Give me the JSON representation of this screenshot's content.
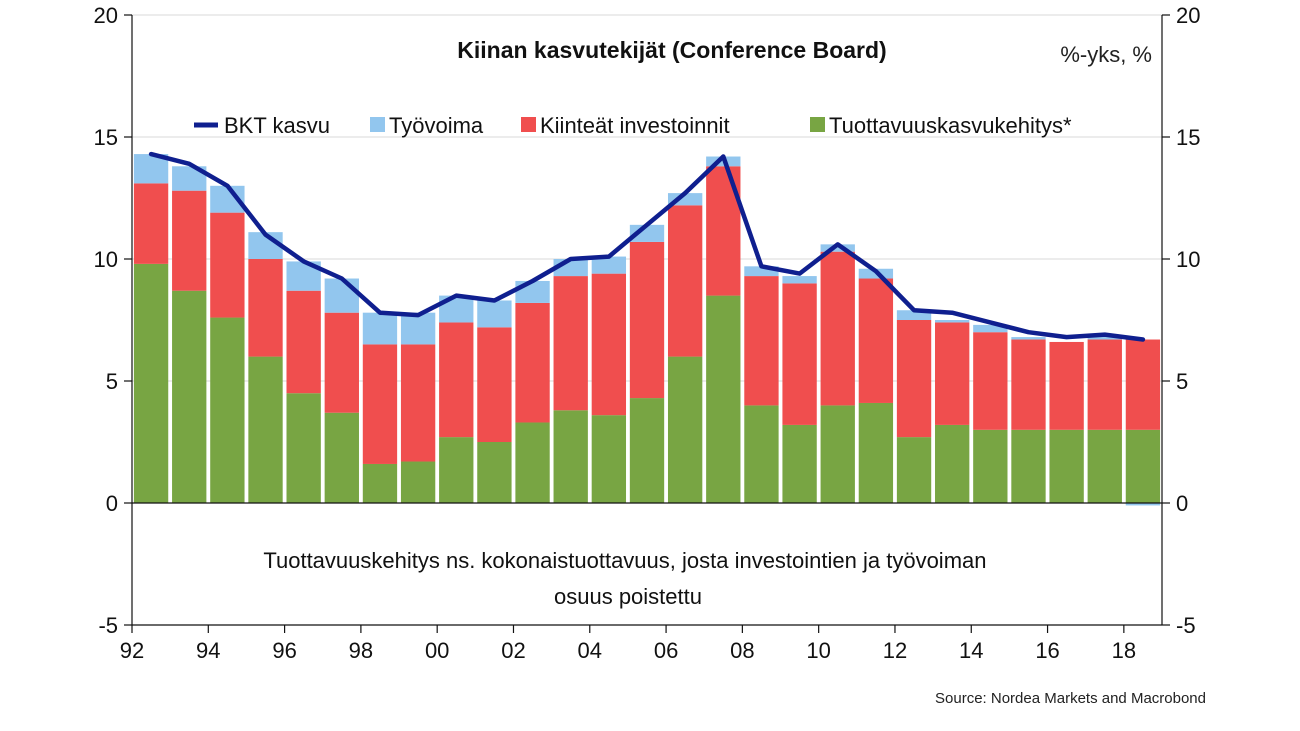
{
  "chart_data": {
    "type": "bar",
    "stacked": true,
    "title": "Kiinan kasvutekijät (Conference Board)",
    "unit_label": "%-yks, %",
    "legend": [
      "BKT kasvu",
      "Työvoima",
      "Kiinteät investoinnit",
      "Tuottavuuskasvukehitys*"
    ],
    "legend_position": "top",
    "x": [
      1992,
      1993,
      1994,
      1995,
      1996,
      1997,
      1998,
      1999,
      2000,
      2001,
      2002,
      2003,
      2004,
      2005,
      2006,
      2007,
      2008,
      2009,
      2010,
      2011,
      2012,
      2013,
      2014,
      2015,
      2016,
      2017,
      2018
    ],
    "xtick_values": [
      1992,
      1994,
      1996,
      1998,
      2000,
      2002,
      2004,
      2006,
      2008,
      2010,
      2012,
      2014,
      2016,
      2018
    ],
    "xtick_labels": [
      "92",
      "94",
      "96",
      "98",
      "00",
      "02",
      "04",
      "06",
      "08",
      "10",
      "12",
      "14",
      "16",
      "18"
    ],
    "ylim": [
      -5,
      20
    ],
    "yticks": [
      -5,
      0,
      5,
      10,
      15,
      20
    ],
    "ytick_labels": [
      "-5",
      "0",
      "5",
      "10",
      "15",
      "20"
    ],
    "grid": true,
    "series": [
      {
        "name": "Tuottavuuskasvukehitys*",
        "kind": "bar",
        "color": "#78a543",
        "values": [
          9.8,
          8.7,
          7.6,
          6.0,
          4.5,
          3.7,
          1.6,
          1.7,
          2.7,
          2.5,
          3.3,
          3.8,
          3.6,
          4.3,
          6.0,
          8.5,
          4.0,
          3.2,
          4.0,
          4.1,
          2.7,
          3.2,
          3.0,
          3.0,
          3.0,
          3.0,
          3.0
        ]
      },
      {
        "name": "Kiinteät investoinnit",
        "kind": "bar",
        "color": "#f04e4e",
        "values": [
          3.3,
          4.1,
          4.3,
          4.0,
          4.2,
          4.1,
          4.9,
          4.8,
          4.7,
          4.7,
          4.9,
          5.5,
          5.8,
          6.4,
          6.2,
          5.3,
          5.3,
          5.8,
          6.3,
          5.1,
          4.8,
          4.2,
          4.0,
          3.7,
          3.6,
          3.7,
          3.7
        ]
      },
      {
        "name": "Työvoima",
        "kind": "bar",
        "color": "#92c6ee",
        "values": [
          1.2,
          1.0,
          1.1,
          1.1,
          1.2,
          1.4,
          1.3,
          1.3,
          1.1,
          1.1,
          0.9,
          0.7,
          0.7,
          0.7,
          0.5,
          0.4,
          0.4,
          0.3,
          0.3,
          0.4,
          0.4,
          0.1,
          0.3,
          0.1,
          0.0,
          0.1,
          -0.1
        ]
      },
      {
        "name": "BKT kasvu",
        "kind": "line",
        "color": "#0f1f8f",
        "values": [
          14.3,
          13.9,
          13.0,
          11.0,
          9.9,
          9.2,
          7.8,
          7.7,
          8.5,
          8.3,
          9.1,
          10.0,
          10.1,
          11.4,
          12.7,
          14.2,
          9.7,
          9.4,
          10.6,
          9.5,
          7.9,
          7.8,
          7.4,
          7.0,
          6.8,
          6.9,
          6.7
        ]
      }
    ],
    "annotation": "Tuottavuuskehitys ns. kokonaistuottavuus, josta investointien ja työvoiman osuus poistettu",
    "source": "Source: Nordea Markets and Macrobond"
  }
}
